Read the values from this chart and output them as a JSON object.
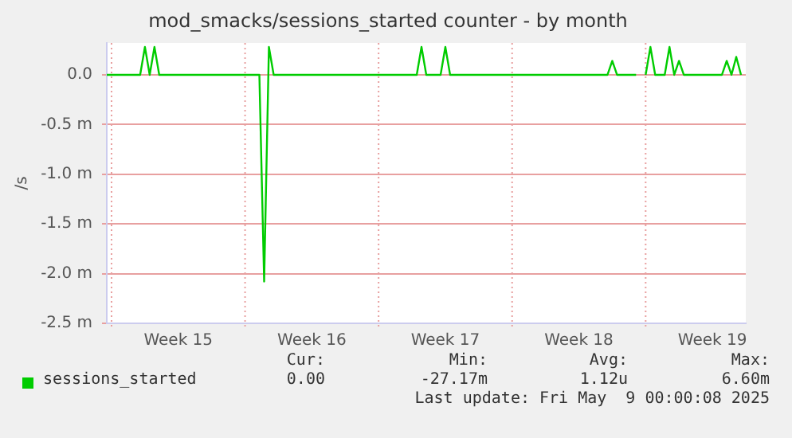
{
  "chart_data": {
    "type": "line",
    "title": "mod_smacks/sessions_started counter - by month",
    "ylabel": "/s",
    "categories": [
      null,
      null,
      null,
      null,
      null,
      null,
      null,
      null,
      null,
      null,
      null,
      null,
      null,
      null,
      null,
      "Week 15",
      null,
      null,
      null,
      null,
      null,
      null,
      null,
      null,
      null,
      null,
      null,
      null,
      null,
      null,
      null,
      null,
      null,
      null,
      null,
      null,
      null,
      null,
      null,
      null,
      null,
      null,
      null,
      "Week 16",
      null,
      null,
      null,
      null,
      null,
      null,
      null,
      null,
      null,
      null,
      null,
      null,
      null,
      null,
      null,
      null,
      null,
      null,
      null,
      null,
      null,
      null,
      null,
      null,
      null,
      null,
      null,
      "Week 17",
      null,
      null,
      null,
      null,
      null,
      null,
      null,
      null,
      null,
      null,
      null,
      null,
      null,
      null,
      null,
      null,
      null,
      null,
      null,
      null,
      null,
      null,
      null,
      null,
      null,
      null,
      null,
      "Week 18",
      null,
      null,
      null,
      null,
      null,
      null,
      null,
      null,
      null,
      null,
      null,
      null,
      null,
      null,
      null,
      null,
      null,
      null,
      null,
      null,
      null,
      null,
      null,
      null,
      null,
      null,
      null,
      "Week 19",
      null,
      null,
      null,
      null,
      null,
      null,
      null
    ],
    "series": [
      {
        "name": "sessions_started",
        "color": "#00cc00",
        "values": [
          0,
          0,
          0,
          0,
          0,
          0,
          0,
          0,
          0.28,
          0,
          0.28,
          0,
          0,
          0,
          0,
          0,
          0,
          0,
          0,
          0,
          0,
          0,
          0,
          0,
          0,
          0,
          0,
          0,
          0,
          0,
          0,
          0,
          0,
          -2.08,
          0.28,
          0,
          0,
          0,
          0,
          0,
          0,
          0,
          0,
          0,
          0,
          0,
          0,
          0,
          0,
          0,
          0,
          0,
          0,
          0,
          0,
          0,
          0,
          0,
          0,
          0,
          0,
          0,
          0,
          0,
          0,
          0,
          0.28,
          0,
          0,
          0,
          0,
          0.28,
          0,
          0,
          0,
          0,
          0,
          0,
          0,
          0,
          0,
          0,
          0,
          0,
          0,
          0,
          0,
          0,
          0,
          0,
          0,
          0,
          0,
          0,
          0,
          0,
          0,
          0,
          0,
          0,
          0,
          0,
          0,
          0,
          0,
          0,
          0.14,
          0,
          0,
          0,
          0,
          0,
          null,
          0,
          0.28,
          0,
          0,
          0,
          0.28,
          0,
          0.14,
          0,
          0,
          0,
          0,
          0,
          0,
          0,
          0,
          0,
          0.14,
          0,
          0.18,
          0,
          null
        ]
      }
    ],
    "ylim": [
      -2.5,
      0.32
    ],
    "yticks": [
      {
        "value": 0,
        "label": "0.0"
      },
      {
        "value": -0.5,
        "label": "-0.5 m"
      },
      {
        "value": -1,
        "label": "-1.0 m"
      },
      {
        "value": -1.5,
        "label": "-1.5 m"
      },
      {
        "value": -2,
        "label": "-2.0 m"
      },
      {
        "value": -2.5,
        "label": "-2.5 m"
      }
    ],
    "grid": true,
    "legend": "bottom",
    "line_style": "solid",
    "marker": "none",
    "annotations": [
      "Cur:",
      "Min:",
      "Avg:",
      "Max:",
      "0.00",
      "-27.17m",
      "1.12u",
      "6.60m",
      "Last update: Fri May  9 00:00:08 2025"
    ]
  }
}
